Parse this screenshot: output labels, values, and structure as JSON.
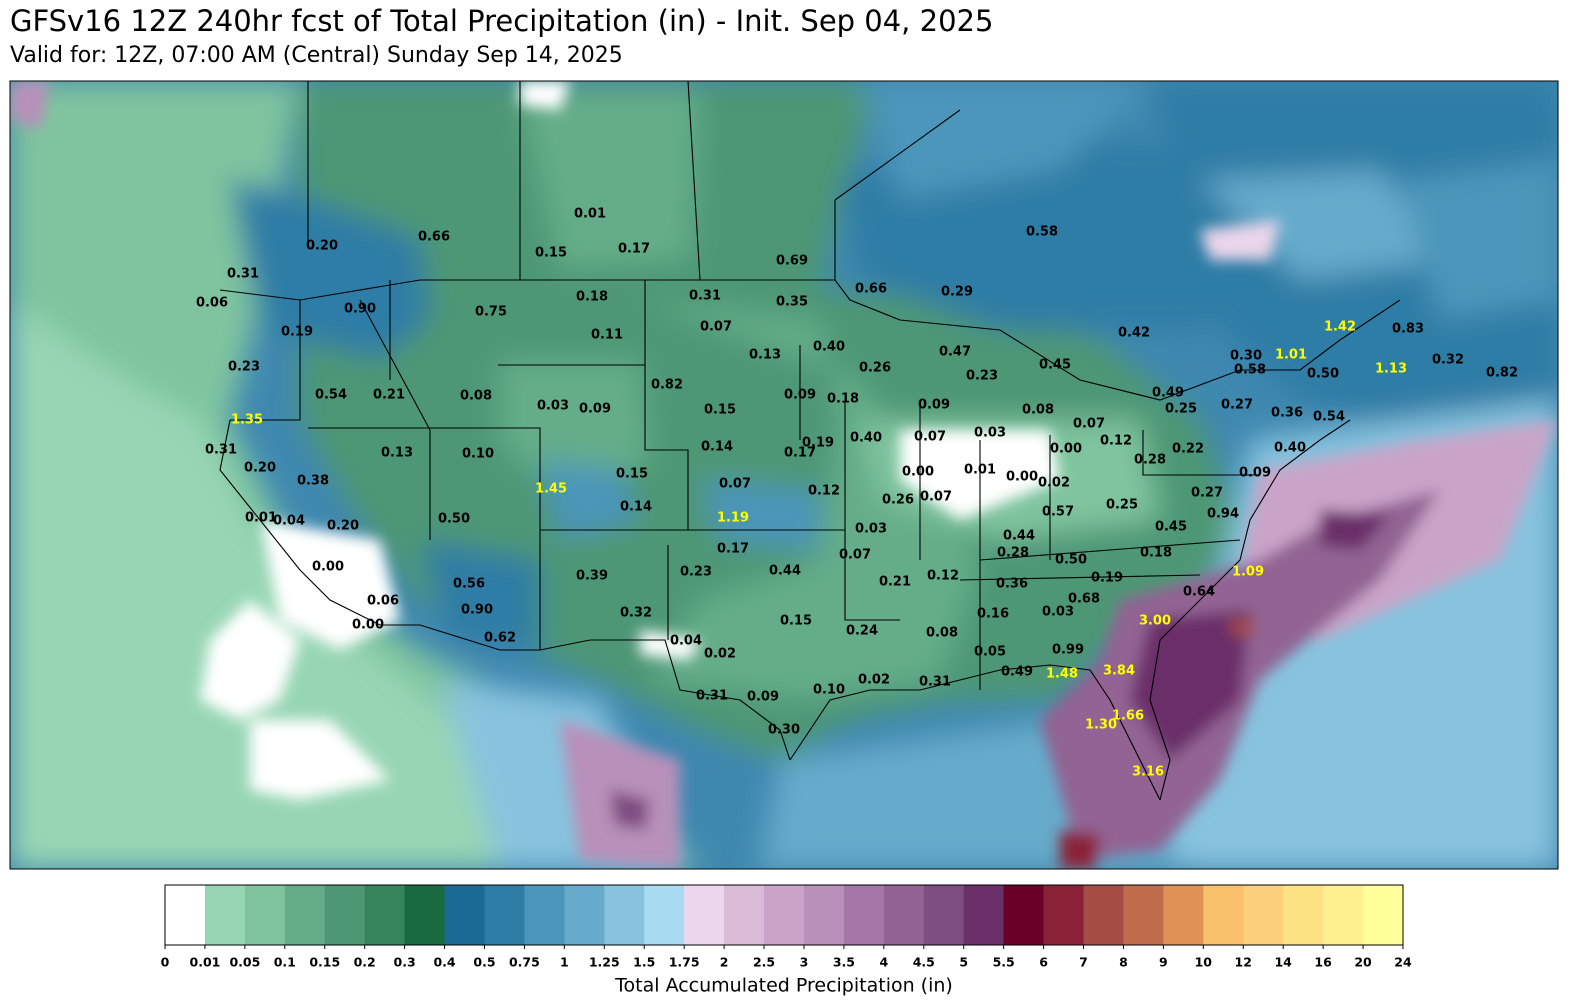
{
  "header": {
    "title": "GFSv16 12Z 240hr fcst of Total Precipitation (in) - Init. Sep 04, 2025",
    "subtitle": "Valid for: 12Z, 07:00 AM (Central) Sunday Sep 14, 2025"
  },
  "map": {
    "labels": [
      "0.01",
      "0.66",
      "0.20",
      "0.15",
      "0.17",
      "0.69",
      "0.58",
      "0.31",
      "0.06",
      "0.90",
      "0.75",
      "0.18",
      "0.31",
      "0.35",
      "0.66",
      "0.29",
      "0.19",
      "0.11",
      "0.07",
      "0.42",
      "1.42",
      "0.83",
      "0.13",
      "0.40",
      "0.47",
      "0.23",
      "0.82",
      "0.26",
      "0.23",
      "0.45",
      "1.01",
      "0.30",
      "0.58",
      "0.50",
      "1.13",
      "0.32",
      "0.82",
      "0.54",
      "0.21",
      "0.08",
      "0.03",
      "0.09",
      "0.09",
      "0.18",
      "0.09",
      "0.08",
      "0.49",
      "0.25",
      "0.27",
      "0.36",
      "0.54",
      "1.35",
      "0.15",
      "0.03",
      "0.07",
      "0.07",
      "0.12",
      "0.00",
      "0.31",
      "0.13",
      "0.10",
      "0.14",
      "0.17",
      "0.19",
      "0.40",
      "0.28",
      "0.22",
      "0.40",
      "0.15",
      "0.20",
      "0.38",
      "1.45",
      "0.07",
      "0.12",
      "0.00",
      "0.01",
      "0.00",
      "0.02",
      "0.26",
      "0.07",
      "0.25",
      "0.27",
      "0.09",
      "0.14",
      "0.01",
      "0.04",
      "0.20",
      "0.50",
      "1.19",
      "0.03",
      "0.57",
      "0.44",
      "0.45",
      "0.94",
      "0.17",
      "0.07",
      "0.28",
      "0.50",
      "0.18",
      "0.00",
      "0.23",
      "0.39",
      "0.44",
      "0.21",
      "0.12",
      "0.36",
      "0.19",
      "1.09",
      "0.56",
      "0.06",
      "0.90",
      "0.32",
      "0.68",
      "0.64",
      "0.16",
      "0.03",
      "3.00",
      "0.00",
      "0.15",
      "0.24",
      "0.08",
      "0.62",
      "0.04",
      "0.05",
      "0.99",
      "0.02",
      "1.48",
      "3.84",
      "0.49",
      "0.02",
      "0.31",
      "0.31",
      "0.09",
      "0.10",
      "1.66",
      "1.30",
      "0.30",
      "3.16"
    ]
  },
  "colorbar": {
    "label": "Total Accumulated Precipitation (in)",
    "ticks": [
      0,
      0.01,
      0.05,
      0.1,
      0.15,
      0.2,
      0.3,
      0.4,
      0.5,
      0.75,
      1,
      1.25,
      1.5,
      1.75,
      2,
      2.5,
      3,
      3.5,
      4,
      4.5,
      5,
      5.5,
      6,
      7,
      8,
      9,
      10,
      12,
      14,
      16,
      20,
      24
    ],
    "colors": [
      "#ffffff",
      "#97d6b4",
      "#7fc49f",
      "#65ad89",
      "#4e9774",
      "#36845c",
      "#196a3e",
      "#1b6a93",
      "#2e7da6",
      "#4b96ba",
      "#66abcb",
      "#87c3de",
      "#a8dbf1",
      "#ebd6eb",
      "#dabbd7",
      "#c9a4c8",
      "#b890b9",
      "#a577a7",
      "#926393",
      "#7e4e82",
      "#6b2f69",
      "#6a0027",
      "#8b2137",
      "#a54c45",
      "#c16c4d",
      "#df9255",
      "#f8c06a",
      "#fcd07a",
      "#fde284",
      "#fff08f",
      "#ffff99"
    ]
  }
}
